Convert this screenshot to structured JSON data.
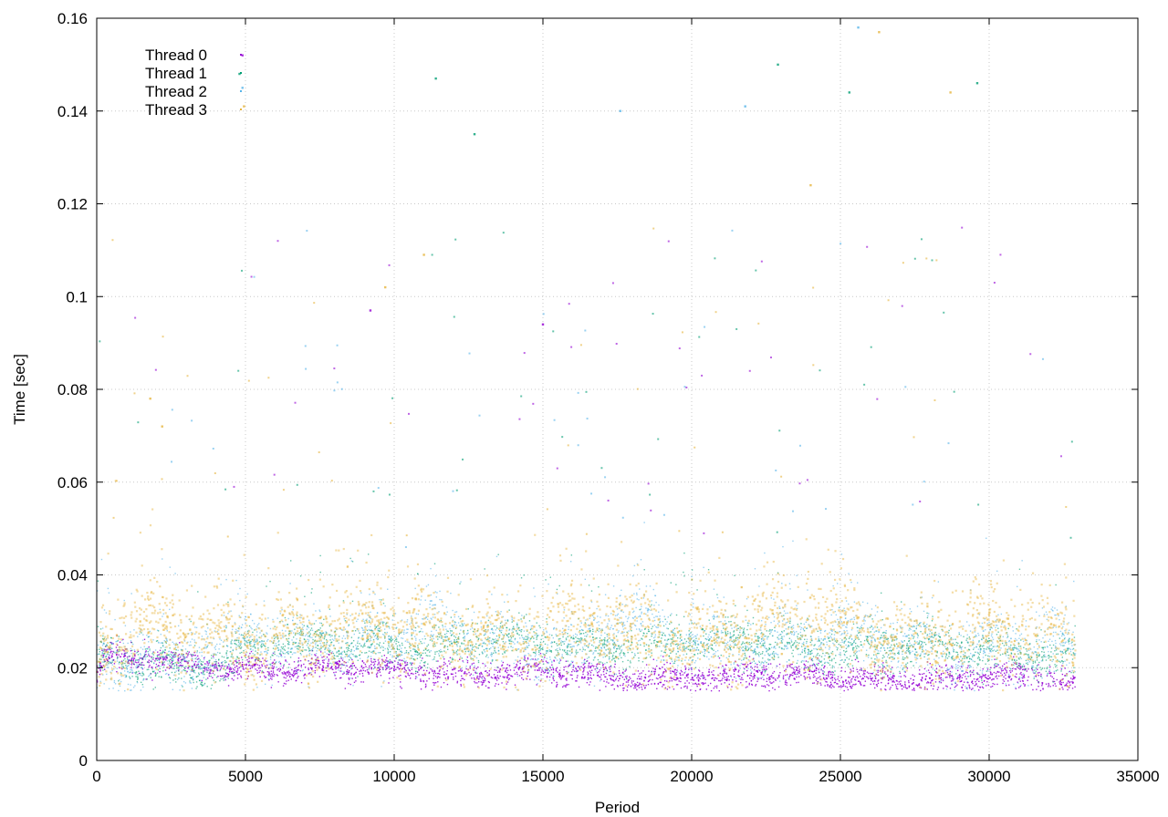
{
  "chart_data": {
    "type": "scatter",
    "title": "",
    "xlabel": "Period",
    "ylabel": "Time [sec]",
    "xlim": [
      0,
      35000
    ],
    "ylim": [
      0,
      0.16
    ],
    "xticks": [
      0,
      5000,
      10000,
      15000,
      20000,
      25000,
      30000,
      35000
    ],
    "yticks": [
      0,
      0.02,
      0.04,
      0.06,
      0.08,
      0.1,
      0.12,
      0.14,
      0.16
    ],
    "xtick_labels": [
      "0",
      "5000",
      "10000",
      "15000",
      "20000",
      "25000",
      "30000",
      "35000"
    ],
    "ytick_labels": [
      "0",
      "0.02",
      "0.04",
      "0.06",
      "0.08",
      "0.1",
      "0.12",
      "0.14",
      "0.16"
    ],
    "grid": true,
    "legend_position": "top-left",
    "series": [
      {
        "name": "Thread 0",
        "color": "#9400d3",
        "trend_x": [
          0,
          300,
          1000,
          2000,
          3000,
          4200,
          5000,
          7000,
          10000,
          13000,
          16000,
          17500,
          20000,
          23000,
          26000,
          28500,
          31000,
          32900
        ],
        "trend_y": [
          0.017,
          0.022,
          0.022,
          0.021,
          0.021,
          0.02,
          0.0205,
          0.0198,
          0.0193,
          0.0192,
          0.0188,
          0.0178,
          0.0183,
          0.018,
          0.0178,
          0.0176,
          0.0178,
          0.0175
        ],
        "spread": 0.0014,
        "outliers": [
          [
            4900,
            0.152
          ],
          [
            9200,
            0.097
          ],
          [
            15000,
            0.094
          ]
        ]
      },
      {
        "name": "Thread 1",
        "color": "#009e73",
        "trend_x": [
          0,
          300,
          1000,
          2000,
          3000,
          4200,
          5000,
          7000,
          10000,
          13000,
          16000,
          20000,
          23000,
          26000,
          29000,
          32900
        ],
        "trend_y": [
          0.021,
          0.022,
          0.021,
          0.0215,
          0.021,
          0.0205,
          0.0245,
          0.025,
          0.025,
          0.025,
          0.025,
          0.025,
          0.025,
          0.0245,
          0.024,
          0.023
        ],
        "spread": 0.0022,
        "outliers": [
          [
            4800,
            0.148
          ],
          [
            11400,
            0.147
          ],
          [
            12700,
            0.135
          ],
          [
            22900,
            0.15
          ],
          [
            25300,
            0.144
          ],
          [
            29600,
            0.146
          ]
        ]
      },
      {
        "name": "Thread 2",
        "color": "#56b4e9",
        "trend_x": [
          0,
          300,
          1000,
          2000,
          3000,
          4200,
          5000,
          7000,
          10000,
          11000,
          13000,
          16000,
          18000,
          20000,
          23000,
          25000,
          27000,
          30000,
          32900
        ],
        "trend_y": [
          0.021,
          0.024,
          0.023,
          0.023,
          0.022,
          0.022,
          0.026,
          0.026,
          0.026,
          0.029,
          0.026,
          0.025,
          0.029,
          0.026,
          0.027,
          0.026,
          0.025,
          0.025,
          0.023
        ],
        "spread": 0.0035,
        "outliers": [
          [
            4900,
            0.145
          ],
          [
            17600,
            0.14
          ],
          [
            21800,
            0.141
          ],
          [
            25600,
            0.158
          ]
        ]
      },
      {
        "name": "Thread 3",
        "color": "#e6b43c",
        "trend_x": [
          0,
          300,
          1000,
          2000,
          3000,
          4200,
          5000,
          7000,
          10000,
          13000,
          16000,
          18000,
          20000,
          23000,
          25500,
          27000,
          30000,
          32900
        ],
        "trend_y": [
          0.02,
          0.026,
          0.026,
          0.028,
          0.026,
          0.027,
          0.028,
          0.028,
          0.027,
          0.028,
          0.027,
          0.028,
          0.027,
          0.028,
          0.029,
          0.028,
          0.027,
          0.025
        ],
        "spread": 0.0045,
        "outliers": [
          [
            4950,
            0.141
          ],
          [
            24000,
            0.124
          ],
          [
            26300,
            0.157
          ],
          [
            28700,
            0.144
          ],
          [
            9700,
            0.102
          ],
          [
            11000,
            0.109
          ],
          [
            1800,
            0.078
          ],
          [
            2200,
            0.072
          ]
        ]
      }
    ]
  }
}
